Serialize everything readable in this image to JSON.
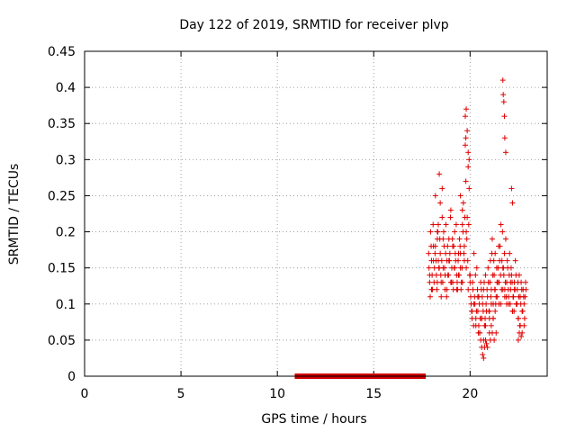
{
  "chart_data": {
    "type": "scatter",
    "title": "Day 122 of 2019, SRMTID for receiver plvp",
    "xlabel": "GPS time / hours",
    "ylabel": "SRMTID / TECUs",
    "xlim": [
      0,
      24
    ],
    "ylim": [
      0,
      0.45
    ],
    "grid": true,
    "x_ticks": [
      "0",
      "5",
      "10",
      "15",
      "20"
    ],
    "x_tick_values": [
      0,
      5,
      10,
      15,
      20
    ],
    "y_ticks": [
      "0",
      "0.05",
      "0.1",
      "0.15",
      "0.2",
      "0.25",
      "0.3",
      "0.35",
      "0.4",
      "0.45"
    ],
    "y_tick_values": [
      0,
      0.05,
      0.1,
      0.15,
      0.2,
      0.25,
      0.3,
      0.35,
      0.4,
      0.45
    ],
    "marker": "+",
    "color": "#e00000",
    "data_gap": {
      "x_start": 10.9,
      "x_end": 17.7,
      "y": 0,
      "color": "#d00000"
    },
    "series": [
      {
        "name": "SRMTID",
        "x": [
          17.85,
          17.9,
          17.95,
          18.0,
          18.05,
          18.1,
          18.15,
          18.2,
          18.25,
          18.3,
          18.35,
          18.4,
          18.45,
          18.5,
          18.55,
          18.6,
          18.65,
          18.7,
          18.75,
          18.8,
          18.85,
          18.9,
          18.95,
          19.0,
          19.05,
          19.1,
          19.15,
          19.2,
          19.25,
          19.3,
          19.35,
          19.4,
          19.45,
          19.5,
          19.55,
          19.6,
          19.65,
          19.7,
          19.75,
          19.8,
          19.85,
          19.9,
          19.95,
          20.0,
          20.05,
          20.1,
          20.15,
          20.2,
          20.25,
          20.3,
          20.35,
          20.4,
          20.45,
          20.5,
          20.55,
          20.6,
          20.65,
          20.7,
          20.75,
          20.8,
          20.85,
          20.9,
          20.95,
          21.0,
          21.05,
          21.1,
          21.15,
          21.2,
          21.25,
          21.3,
          21.35,
          21.4,
          21.45,
          21.5,
          21.55,
          21.6,
          21.65,
          21.7,
          21.75,
          21.8,
          21.85,
          21.9,
          21.95,
          22.0,
          22.05,
          22.1,
          22.15,
          22.2,
          22.25,
          22.3,
          22.35,
          22.4,
          22.45,
          22.5,
          22.55,
          22.6,
          22.65,
          22.7,
          22.75,
          22.8,
          22.85,
          22.9,
          17.87,
          17.93,
          17.98,
          18.03,
          18.08,
          18.13,
          18.18,
          18.23,
          18.28,
          18.33,
          18.38,
          18.43,
          18.48,
          18.53,
          18.58,
          18.63,
          18.68,
          18.73,
          18.78,
          18.83,
          18.88,
          18.93,
          18.98,
          19.03,
          19.08,
          19.13,
          19.18,
          19.23,
          19.28,
          19.33,
          19.38,
          19.43,
          19.48,
          19.53,
          19.58,
          19.63,
          19.68,
          19.73,
          19.78,
          19.83,
          19.88,
          19.93,
          19.98,
          20.03,
          20.08,
          20.13,
          20.18,
          20.23,
          20.28,
          20.33,
          20.38,
          20.43,
          20.48,
          20.53,
          20.58,
          20.63,
          20.68,
          20.73,
          20.78,
          20.83,
          20.88,
          20.93,
          20.98,
          21.03,
          21.08,
          21.13,
          21.18,
          21.23,
          21.28,
          21.33,
          21.38,
          21.43,
          21.48,
          21.53,
          21.58,
          21.63,
          21.68,
          21.73,
          21.78,
          21.83,
          21.88,
          21.93,
          21.98,
          22.03,
          22.08,
          22.13,
          22.18,
          22.23,
          22.28,
          22.33,
          22.38,
          22.43,
          22.48,
          22.53,
          22.58,
          22.63,
          22.68,
          22.73,
          22.78,
          22.83,
          22.88,
          17.9,
          18.0,
          18.1,
          18.2,
          18.3,
          18.4,
          18.5,
          18.6,
          18.7,
          18.8,
          18.9,
          19.0,
          19.1,
          19.2,
          19.3,
          19.4,
          19.5,
          19.6,
          19.7,
          19.8,
          19.9,
          20.0,
          20.1,
          20.2,
          20.3,
          20.4,
          20.5,
          20.6,
          20.7,
          20.8,
          20.9,
          21.0,
          21.1,
          21.2,
          21.3,
          21.4,
          21.5,
          21.6,
          21.7,
          21.8,
          21.9,
          22.0,
          22.1,
          22.2,
          22.3,
          22.4,
          22.5,
          22.6,
          22.7,
          22.8,
          18.45,
          18.55,
          19.75,
          19.8,
          19.85,
          19.9,
          19.78,
          19.95,
          21.7,
          21.72,
          21.75,
          21.78,
          21.8,
          21.85,
          22.15,
          22.2,
          19.6,
          19.5,
          18.3,
          18.35,
          20.45,
          20.55,
          20.6,
          20.65,
          20.7,
          20.75,
          20.8,
          20.85,
          21.0,
          21.05,
          21.1,
          21.15,
          21.2,
          21.25,
          21.3,
          21.35,
          22.5,
          22.55,
          22.6,
          22.65
        ],
        "y": [
          0.17,
          0.13,
          0.2,
          0.16,
          0.12,
          0.18,
          0.15,
          0.25,
          0.14,
          0.19,
          0.16,
          0.28,
          0.17,
          0.13,
          0.22,
          0.15,
          0.18,
          0.12,
          0.21,
          0.16,
          0.14,
          0.19,
          0.17,
          0.23,
          0.15,
          0.13,
          0.18,
          0.2,
          0.16,
          0.14,
          0.12,
          0.17,
          0.19,
          0.15,
          0.13,
          0.21,
          0.24,
          0.18,
          0.32,
          0.2,
          0.22,
          0.29,
          0.26,
          0.13,
          0.1,
          0.08,
          0.12,
          0.17,
          0.1,
          0.07,
          0.15,
          0.09,
          0.11,
          0.06,
          0.13,
          0.08,
          0.1,
          0.12,
          0.07,
          0.14,
          0.09,
          0.11,
          0.13,
          0.08,
          0.16,
          0.12,
          0.19,
          0.1,
          0.14,
          0.17,
          0.11,
          0.13,
          0.15,
          0.1,
          0.18,
          0.21,
          0.16,
          0.12,
          0.14,
          0.11,
          0.19,
          0.13,
          0.15,
          0.1,
          0.17,
          0.12,
          0.14,
          0.09,
          0.11,
          0.13,
          0.16,
          0.1,
          0.12,
          0.08,
          0.14,
          0.11,
          0.13,
          0.09,
          0.12,
          0.1,
          0.11,
          0.12,
          0.15,
          0.11,
          0.18,
          0.14,
          0.21,
          0.13,
          0.17,
          0.16,
          0.12,
          0.2,
          0.15,
          0.19,
          0.14,
          0.16,
          0.13,
          0.2,
          0.15,
          0.17,
          0.11,
          0.18,
          0.14,
          0.16,
          0.22,
          0.13,
          0.19,
          0.12,
          0.15,
          0.17,
          0.21,
          0.13,
          0.16,
          0.14,
          0.18,
          0.12,
          0.15,
          0.2,
          0.17,
          0.22,
          0.27,
          0.19,
          0.16,
          0.21,
          0.14,
          0.11,
          0.09,
          0.13,
          0.07,
          0.11,
          0.14,
          0.09,
          0.12,
          0.06,
          0.1,
          0.08,
          0.12,
          0.11,
          0.09,
          0.13,
          0.08,
          0.1,
          0.12,
          0.15,
          0.09,
          0.13,
          0.11,
          0.17,
          0.14,
          0.16,
          0.12,
          0.1,
          0.15,
          0.13,
          0.18,
          0.16,
          0.14,
          0.12,
          0.2,
          0.15,
          0.17,
          0.13,
          0.11,
          0.16,
          0.12,
          0.14,
          0.1,
          0.15,
          0.13,
          0.11,
          0.09,
          0.12,
          0.14,
          0.1,
          0.13,
          0.11,
          0.07,
          0.1,
          0.12,
          0.09,
          0.11,
          0.08,
          0.13,
          0.14,
          0.12,
          0.16,
          0.18,
          0.13,
          0.15,
          0.11,
          0.19,
          0.14,
          0.12,
          0.16,
          0.13,
          0.18,
          0.15,
          0.12,
          0.14,
          0.17,
          0.13,
          0.16,
          0.15,
          0.12,
          0.14,
          0.09,
          0.1,
          0.08,
          0.11,
          0.06,
          0.08,
          0.05,
          0.07,
          0.04,
          0.09,
          0.1,
          0.08,
          0.12,
          0.11,
          0.13,
          0.1,
          0.15,
          0.12,
          0.1,
          0.11,
          0.13,
          0.09,
          0.12,
          0.1,
          0.08,
          0.11,
          0.06,
          0.07,
          0.24,
          0.26,
          0.36,
          0.37,
          0.34,
          0.31,
          0.33,
          0.3,
          0.41,
          0.39,
          0.38,
          0.36,
          0.33,
          0.31,
          0.26,
          0.24,
          0.23,
          0.25,
          0.2,
          0.21,
          0.07,
          0.05,
          0.04,
          0.03,
          0.025,
          0.04,
          0.05,
          0.045,
          0.06,
          0.05,
          0.07,
          0.06,
          0.08,
          0.05,
          0.09,
          0.06,
          0.05,
          0.06,
          0.07,
          0.055
        ]
      }
    ]
  }
}
